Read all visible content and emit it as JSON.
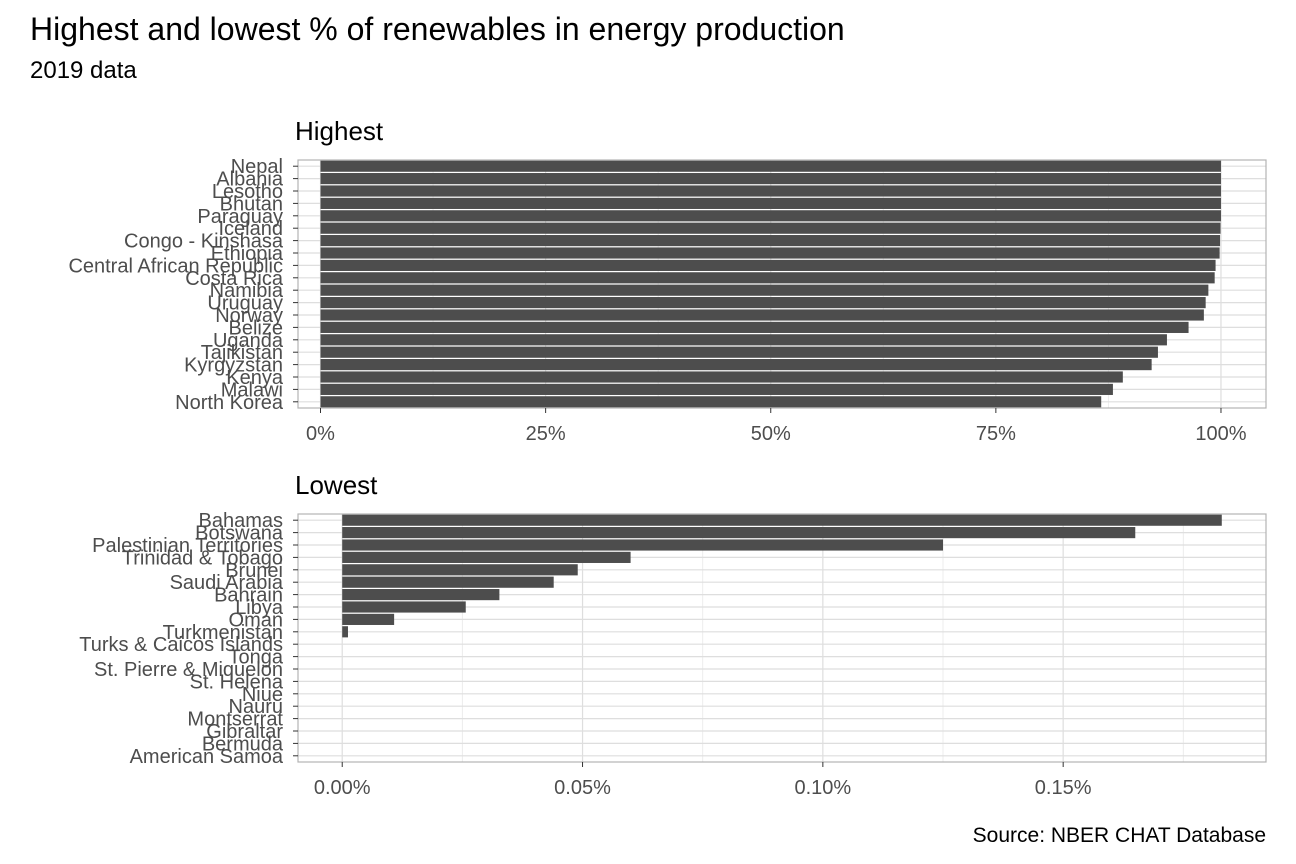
{
  "title": "Highest and lowest % of renewables in energy production",
  "subtitle": "2019 data",
  "caption": "Source: NBER CHAT Database",
  "colors": {
    "bar": "#4d4d4d",
    "panel_border": "#b3b3b3",
    "grid_major": "#dedede",
    "grid_minor": "#ececec",
    "axis_text": "#4d4d4d"
  },
  "chart_data": [
    {
      "type": "bar",
      "orientation": "horizontal",
      "title": "Highest",
      "categories": [
        "Nepal",
        "Albania",
        "Lesotho",
        "Bhutan",
        "Paraguay",
        "Iceland",
        "Congo - Kinshasa",
        "Ethiopia",
        "Central African Republic",
        "Costa Rica",
        "Namibia",
        "Uruguay",
        "Norway",
        "Belize",
        "Uganda",
        "Tajikistan",
        "Kyrgyzstan",
        "Kenya",
        "Malawi",
        "North Korea"
      ],
      "values": [
        100,
        100,
        100,
        100,
        100,
        99.95,
        99.9,
        99.85,
        99.4,
        99.3,
        98.6,
        98.3,
        98.1,
        96.4,
        94.0,
        93.0,
        92.3,
        89.1,
        88.0,
        86.7
      ],
      "xlim": [
        -2.5,
        105
      ],
      "ticks": [
        0,
        25,
        50,
        75,
        100
      ],
      "tick_labels": [
        "0%",
        "25%",
        "50%",
        "75%",
        "100%"
      ],
      "grid": true
    },
    {
      "type": "bar",
      "orientation": "horizontal",
      "title": "Lowest",
      "categories": [
        "Bahamas",
        "Botswana",
        "Palestinian Territories",
        "Trinidad & Tobago",
        "Brunei",
        "Saudi Arabia",
        "Bahrain",
        "Libya",
        "Oman",
        "Turkmenistan",
        "Turks & Caicos Islands",
        "Tonga",
        "St. Pierre & Miquelon",
        "St. Helena",
        "Niue",
        "Nauru",
        "Montserrat",
        "Gibraltar",
        "Bermuda",
        "American Samoa"
      ],
      "values": [
        0.183,
        0.165,
        0.125,
        0.06,
        0.049,
        0.044,
        0.0327,
        0.0257,
        0.0108,
        0.0012,
        0,
        0,
        0,
        0,
        0,
        0,
        0,
        0,
        0,
        0
      ],
      "xlim": [
        -0.0092,
        0.1922
      ],
      "ticks": [
        0,
        0.05,
        0.1,
        0.15
      ],
      "tick_labels": [
        "0.00%",
        "0.05%",
        "0.10%",
        "0.15%"
      ],
      "grid": true
    }
  ]
}
